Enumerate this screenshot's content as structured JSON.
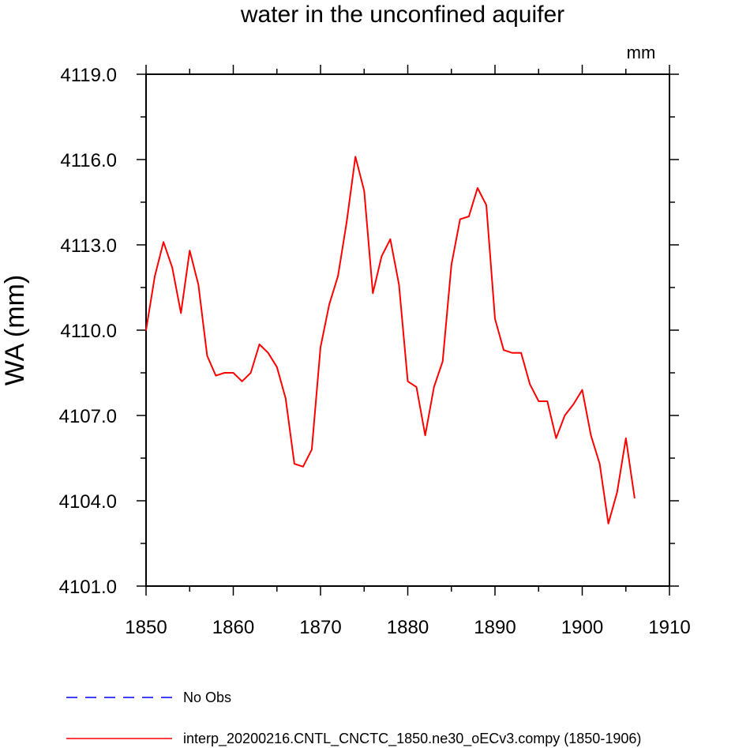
{
  "chart_data": {
    "type": "line",
    "title": "water in the unconfined aquifer",
    "units": "mm",
    "ylabel": "WA  (mm)",
    "xlabel": "",
    "xlim": [
      1850,
      1910
    ],
    "ylim": [
      4101.0,
      4119.0
    ],
    "x_ticks": [
      "1850",
      "1860",
      "1870",
      "1880",
      "1890",
      "1900",
      "1910"
    ],
    "y_ticks": [
      "4101.0",
      "4104.0",
      "4107.0",
      "4110.0",
      "4113.0",
      "4116.0",
      "4119.0"
    ],
    "series": [
      {
        "name": "No Obs",
        "color": "#0000ff",
        "dash": "dashed",
        "x": [],
        "values": []
      },
      {
        "name": "interp_20200216.CNTL_CNCTC_1850.ne30_oECv3.compy (1850-1906)",
        "color": "#ff0000",
        "dash": "solid",
        "x": [
          1850,
          1851,
          1852,
          1853,
          1854,
          1855,
          1856,
          1857,
          1858,
          1859,
          1860,
          1861,
          1862,
          1863,
          1864,
          1865,
          1866,
          1867,
          1868,
          1869,
          1870,
          1871,
          1872,
          1873,
          1874,
          1875,
          1876,
          1877,
          1878,
          1879,
          1880,
          1881,
          1882,
          1883,
          1884,
          1885,
          1886,
          1887,
          1888,
          1889,
          1890,
          1891,
          1892,
          1893,
          1894,
          1895,
          1896,
          1897,
          1898,
          1899,
          1900,
          1901,
          1902,
          1903,
          1904,
          1905,
          1906
        ],
        "values": [
          4110.0,
          4111.9,
          4113.1,
          4112.2,
          4110.6,
          4112.8,
          4111.6,
          4109.1,
          4108.4,
          4108.5,
          4108.5,
          4108.2,
          4108.5,
          4109.5,
          4109.2,
          4108.7,
          4107.6,
          4105.3,
          4105.2,
          4105.8,
          4109.4,
          4110.9,
          4111.9,
          4113.8,
          4116.1,
          4114.9,
          4111.3,
          4112.6,
          4113.2,
          4111.6,
          4108.2,
          4108.0,
          4106.3,
          4108.0,
          4108.9,
          4112.3,
          4113.9,
          4114.0,
          4115.0,
          4114.4,
          4110.4,
          4109.3,
          4109.2,
          4109.2,
          4108.1,
          4107.5,
          4107.5,
          4106.2,
          4107.0,
          4107.4,
          4107.9,
          4106.3,
          4105.3,
          4103.2,
          4104.3,
          4106.2,
          4104.1
        ]
      }
    ]
  }
}
